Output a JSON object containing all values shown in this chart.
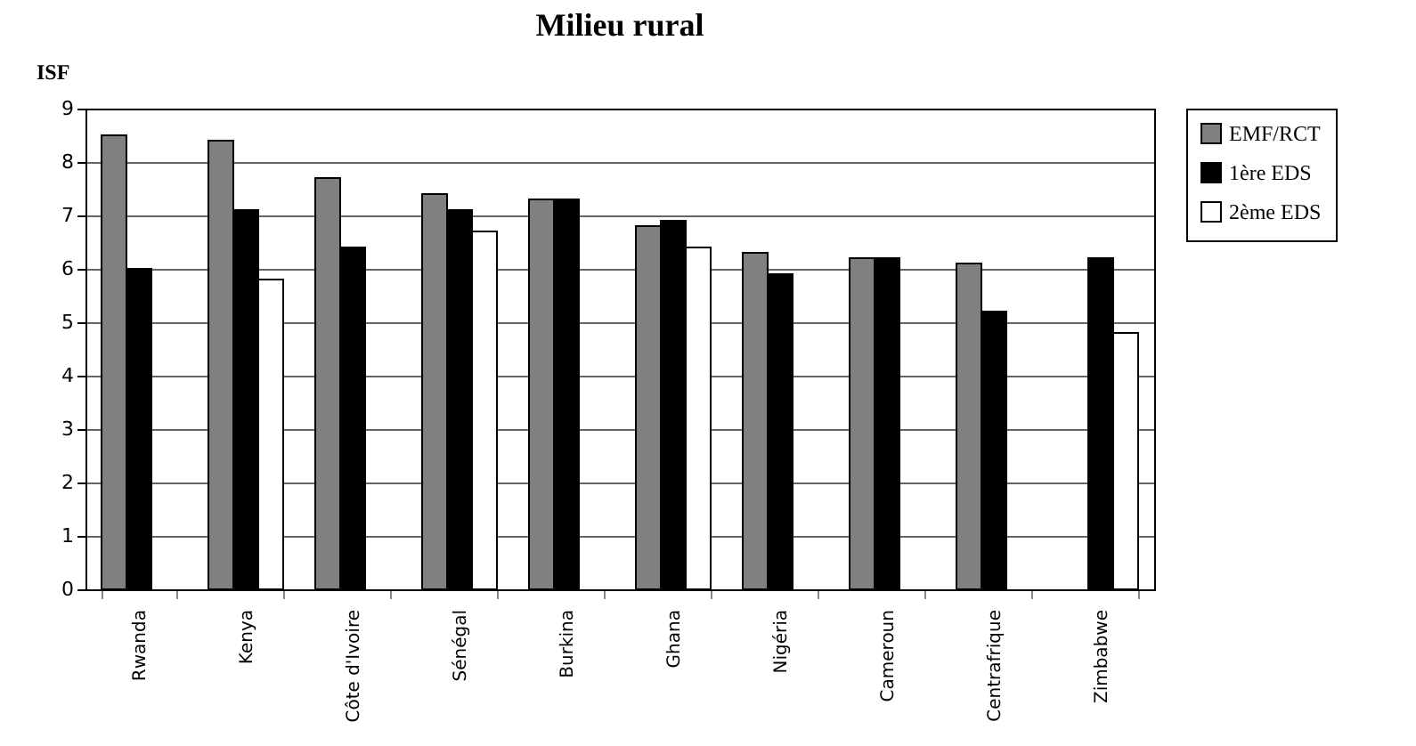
{
  "chart_data": {
    "type": "bar",
    "title": "Milieu rural",
    "ylabel": "ISF",
    "categories": [
      "Rwanda",
      "Kenya",
      "Côte d'Ivoire",
      "Sénégal",
      "Burkina",
      "Ghana",
      "Nigéria",
      "Cameroun",
      "Centrafrique",
      "Zimbabwe"
    ],
    "series": [
      {
        "name": "EMF/RCT",
        "color": "#808080",
        "values": [
          8.5,
          8.4,
          7.7,
          7.4,
          7.3,
          6.8,
          6.3,
          6.2,
          6.1,
          null
        ]
      },
      {
        "name": "1ère EDS",
        "color": "#000000",
        "values": [
          6.0,
          7.1,
          6.4,
          7.1,
          7.3,
          6.9,
          5.9,
          6.2,
          5.2,
          6.2
        ]
      },
      {
        "name": "2ème EDS",
        "color": "#ffffff",
        "values": [
          null,
          5.8,
          null,
          6.7,
          null,
          6.4,
          null,
          null,
          null,
          4.8
        ]
      }
    ],
    "ylim": [
      0,
      9
    ],
    "yticks": [
      0,
      1,
      2,
      3,
      4,
      5,
      6,
      7,
      8,
      9
    ],
    "grid": "y",
    "legend": "right"
  }
}
